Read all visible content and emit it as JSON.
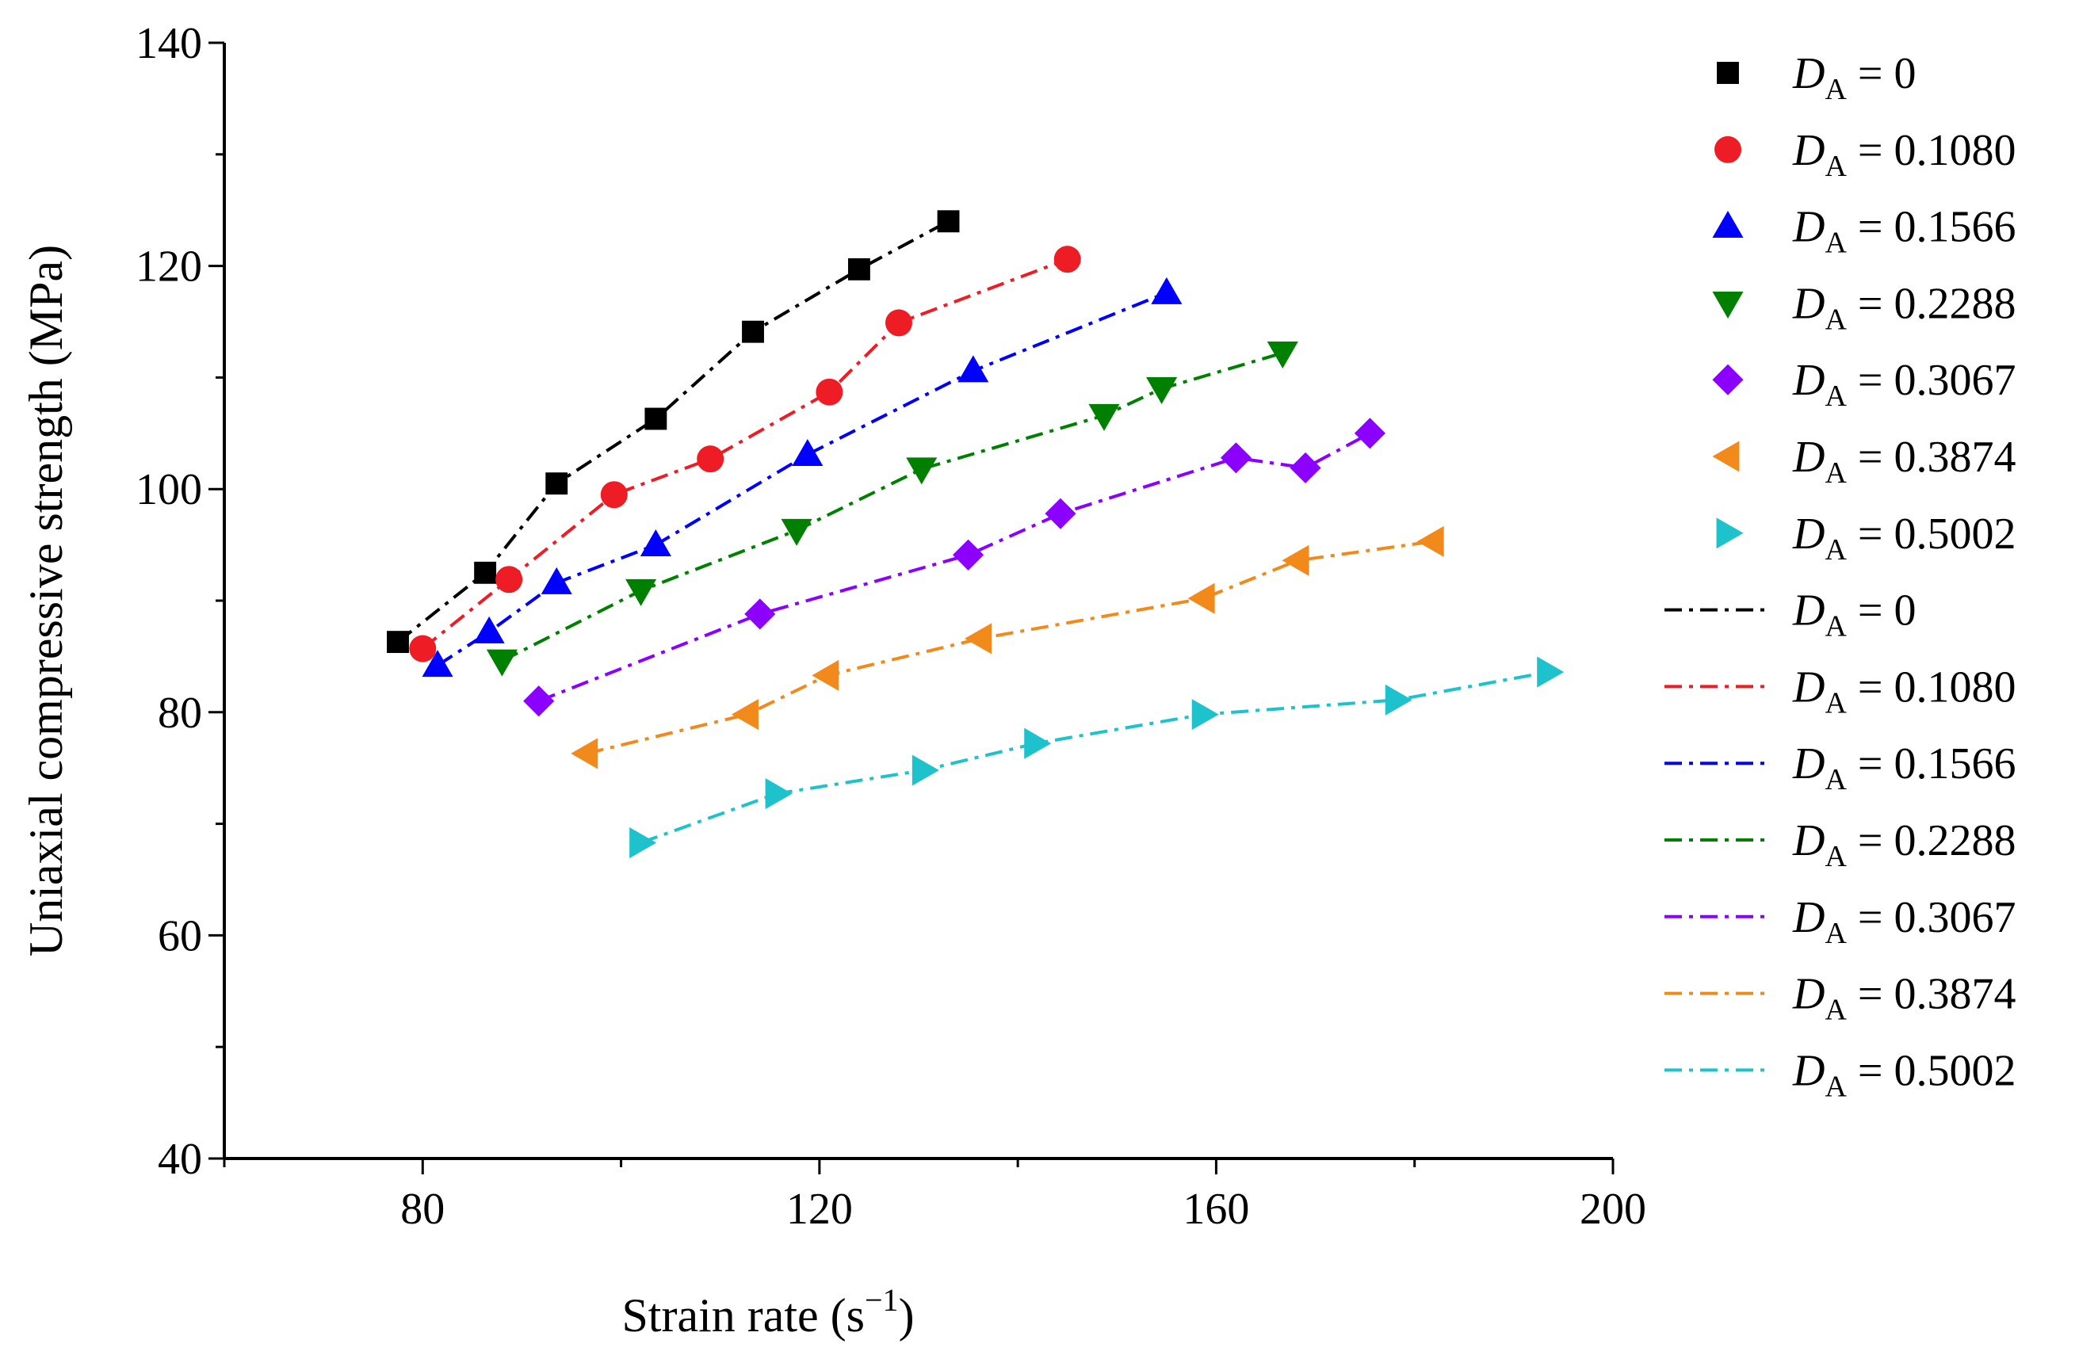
{
  "chart_data": {
    "type": "line",
    "xlabel": "Strain rate (s",
    "xlabel_exponent": "−1",
    "xlabel_close": ")",
    "ylabel": "Uniaxial compressive strength (MPa)",
    "xlim": [
      60,
      200
    ],
    "ylim": [
      40,
      140
    ],
    "x_ticks": [
      80,
      120,
      160,
      200
    ],
    "y_ticks": [
      40,
      60,
      80,
      100,
      120,
      140
    ],
    "grid": false,
    "legend_position": "right",
    "legend_symbol": "D",
    "legend_subscript": "A",
    "series": [
      {
        "name": "DA = 0",
        "label_value": "= 0",
        "color": "#000000",
        "marker": "square",
        "x": [
          77.5,
          86.3,
          93.5,
          103.5,
          113.3,
          124.0,
          133.0
        ],
        "y": [
          86.3,
          92.5,
          100.5,
          106.3,
          114.1,
          119.7,
          124.0
        ]
      },
      {
        "name": "DA = 0.1080",
        "label_value": "= 0.1080",
        "color": "#ee1c25",
        "marker": "circle",
        "x": [
          80.0,
          88.7,
          99.3,
          109.0,
          121.0,
          128.0,
          145.0
        ],
        "y": [
          85.7,
          91.9,
          99.5,
          102.7,
          108.7,
          114.9,
          120.6
        ]
      },
      {
        "name": "DA = 0.1566",
        "label_value": "= 0.1566",
        "color": "#0000ff",
        "marker": "triangle-up",
        "x": [
          81.5,
          86.7,
          93.5,
          103.5,
          118.8,
          135.5,
          155.0
        ],
        "y": [
          84.2,
          87.2,
          91.6,
          95.0,
          103.1,
          110.6,
          117.6
        ]
      },
      {
        "name": "DA = 0.2288",
        "label_value": "= 0.2288",
        "color": "#008000",
        "marker": "triangle-down",
        "x": [
          88.0,
          102.0,
          117.7,
          130.3,
          148.7,
          154.5,
          166.7
        ],
        "y": [
          84.6,
          90.9,
          96.3,
          101.8,
          106.6,
          109.0,
          112.2
        ]
      },
      {
        "name": "DA = 0.3067",
        "label_value": "= 0.3067",
        "color": "#8b00ff",
        "marker": "diamond",
        "x": [
          91.7,
          114.0,
          135.0,
          144.3,
          162.0,
          169.0,
          175.5
        ],
        "y": [
          81.0,
          88.8,
          94.1,
          97.8,
          102.8,
          101.9,
          105.0
        ]
      },
      {
        "name": "DA = 0.3874",
        "label_value": "= 0.3874",
        "color": "#f28a1b",
        "marker": "triangle-left",
        "x": [
          96.5,
          112.7,
          120.8,
          136.2,
          158.7,
          168.2,
          181.8
        ],
        "y": [
          76.3,
          79.8,
          83.3,
          86.6,
          90.2,
          93.6,
          95.3
        ]
      },
      {
        "name": "DA = 0.5002",
        "label_value": "= 0.5002",
        "color": "#1ec2cc",
        "marker": "triangle-right",
        "x": [
          102.0,
          115.7,
          130.5,
          141.8,
          158.7,
          178.2,
          193.5
        ],
        "y": [
          68.3,
          72.7,
          74.8,
          77.2,
          79.8,
          81.1,
          83.6
        ]
      }
    ]
  }
}
